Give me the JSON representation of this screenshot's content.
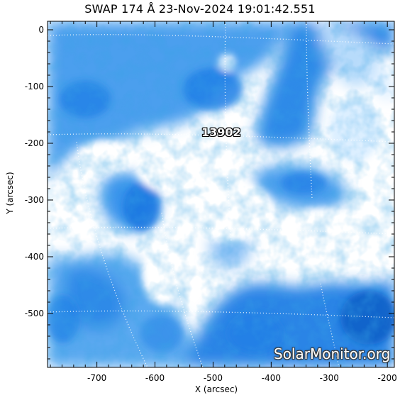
{
  "plot": {
    "title": "SWAP 174 Å 23-Nov-2024 19:01:42.551",
    "xlabel": "X (arcsec)",
    "ylabel": "Y (arcsec)",
    "xlim": [
      -785,
      -188
    ],
    "ylim": [
      -595,
      15
    ],
    "x_ticks": [
      "-700",
      "-600",
      "-500",
      "-400",
      "-300",
      "-200"
    ],
    "y_ticks": [
      "0",
      "-100",
      "-200",
      "-300",
      "-400",
      "-500"
    ],
    "region_label": "13902",
    "watermark": "SolarMonitor.org"
  },
  "colors": {
    "saturated": "#ffffff",
    "light_blue": "#9ccaf6",
    "medium_blue": "#4b9fee",
    "deep_blue": "#1f7fe6",
    "dark_blue": "#0a5fc8"
  }
}
